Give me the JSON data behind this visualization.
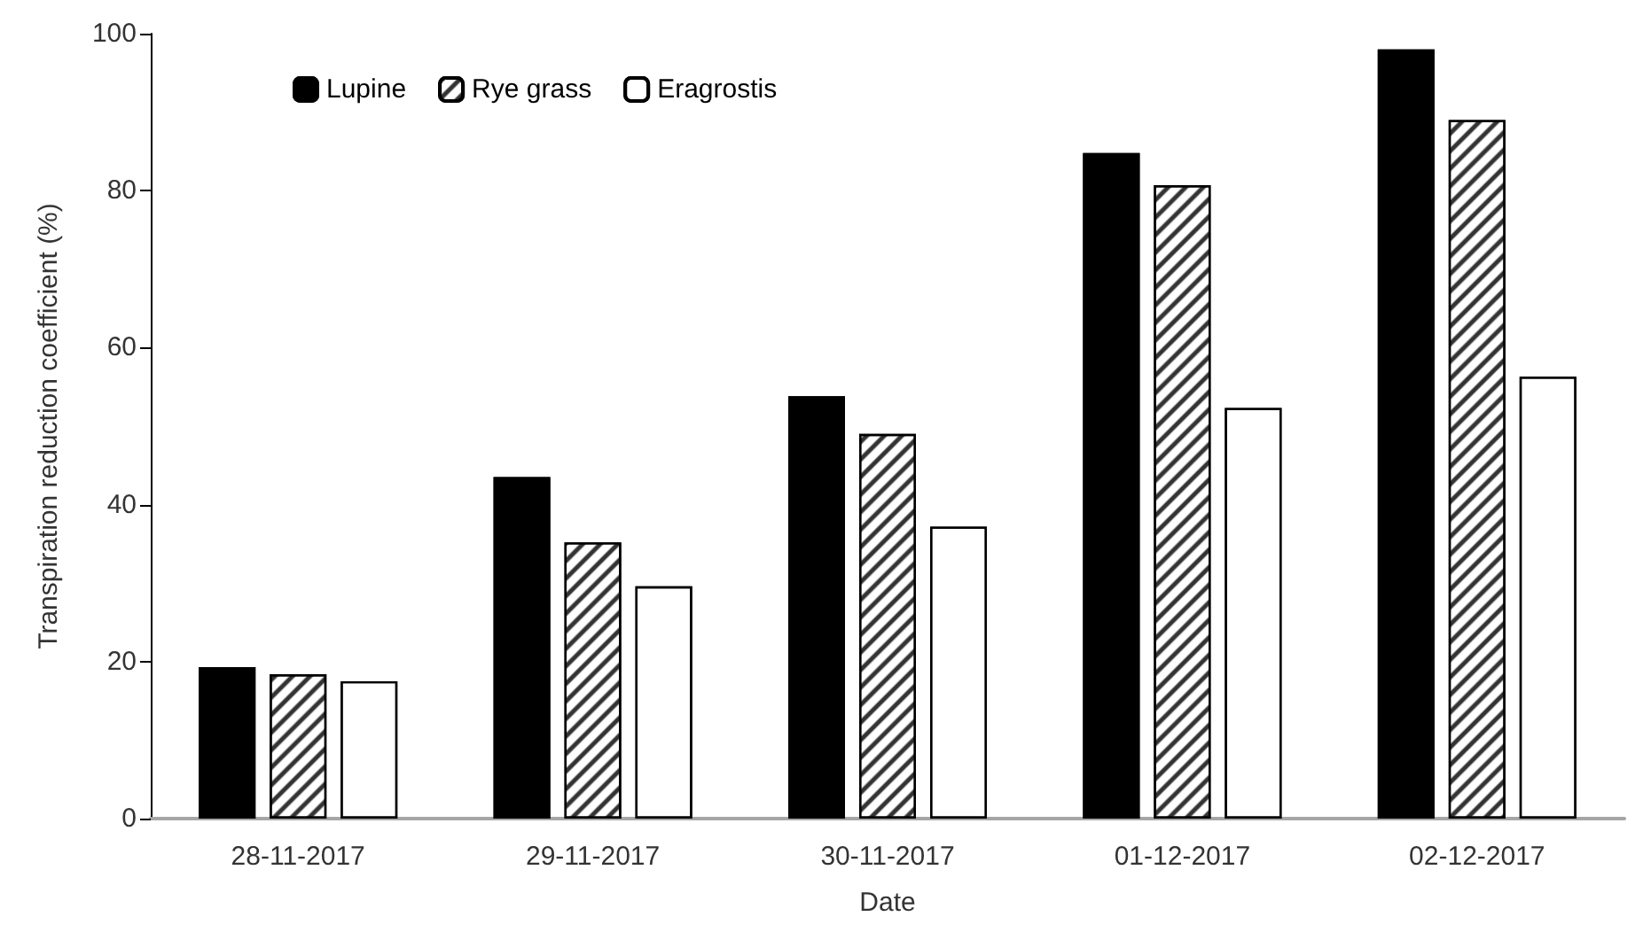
{
  "chart_data": {
    "type": "bar",
    "xlabel": "Date",
    "ylabel": "Transpiration reduction coefficient (%)",
    "categories": [
      "28-11-2017",
      "29-11-2017",
      "30-11-2017",
      "01-12-2017",
      "02-12-2017"
    ],
    "series": [
      {
        "name": "Lupine",
        "color": "#000000",
        "values": [
          19.3,
          43.5,
          53.8,
          84.8,
          98
        ]
      },
      {
        "name": "Rye grass",
        "color": "#ffffff",
        "values": [
          18.4,
          35.2,
          49,
          80.7,
          89
        ]
      },
      {
        "name": "Eragrostis",
        "color": "#ffffff",
        "values": [
          17.5,
          29.6,
          37.2,
          52.3,
          56.3
        ]
      }
    ],
    "ylim": [
      0,
      100
    ],
    "yticks": [
      0,
      20,
      40,
      60,
      80,
      100
    ],
    "grid": false,
    "legend": "top left"
  }
}
